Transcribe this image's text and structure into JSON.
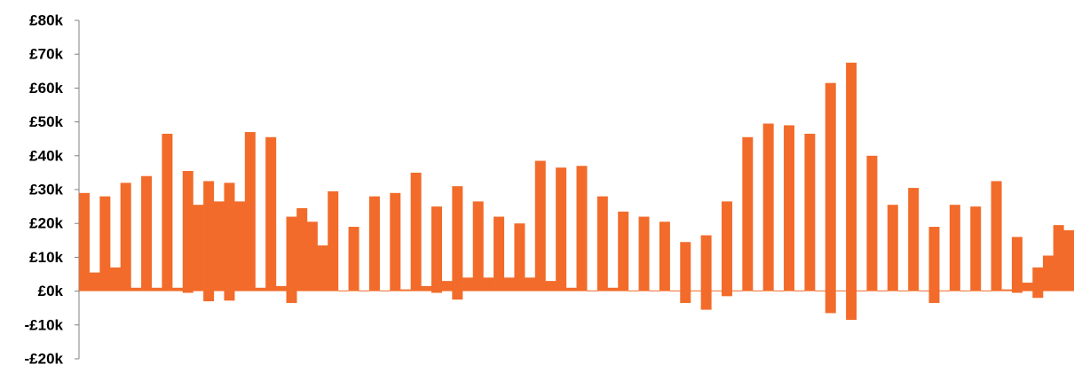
{
  "chart_data": {
    "type": "bar",
    "title": "",
    "xlabel": "",
    "ylabel": "",
    "ylim": [
      -20000,
      80000
    ],
    "y_ticks": [
      -20000,
      -10000,
      0,
      10000,
      20000,
      30000,
      40000,
      50000,
      60000,
      70000,
      80000
    ],
    "y_tick_labels": [
      "-£20k",
      "-£10k",
      "£0k",
      "£10k",
      "£20k",
      "£30k",
      "£40k",
      "£50k",
      "£60k",
      "£70k",
      "£80k"
    ],
    "grid": false,
    "legend": "none",
    "bar_color": "#F26B2A",
    "bars": [
      {
        "low": 0,
        "high": 29000
      },
      {
        "low": 0,
        "high": 5500
      },
      {
        "low": 0,
        "high": 28000
      },
      {
        "low": 0,
        "high": 7000
      },
      {
        "low": 0,
        "high": 32000
      },
      {
        "low": 0,
        "high": 1000
      },
      {
        "low": 0,
        "high": 34000
      },
      {
        "low": 0,
        "high": 1000
      },
      {
        "low": 0,
        "high": 46500
      },
      {
        "low": 0,
        "high": 1000
      },
      {
        "low": -500,
        "high": 35500
      },
      {
        "low": 0,
        "high": 25500
      },
      {
        "low": -3000,
        "high": 32500
      },
      {
        "low": 0,
        "high": 26500
      },
      {
        "low": -2800,
        "high": 32000
      },
      {
        "low": 0,
        "high": 26500
      },
      {
        "low": 0,
        "high": 47000
      },
      {
        "low": 0,
        "high": 1000
      },
      {
        "low": 0,
        "high": 45500
      },
      {
        "low": 0,
        "high": 1500
      },
      {
        "low": -3500,
        "high": 22000
      },
      {
        "low": 0,
        "high": 24500
      },
      {
        "low": 0,
        "high": 20500
      },
      {
        "low": 0,
        "high": 13500
      },
      {
        "low": 0,
        "high": 29500
      },
      {
        "low": 0,
        "high": 200
      },
      {
        "low": 0,
        "high": 19000
      },
      {
        "low": 0,
        "high": 200
      },
      {
        "low": 0,
        "high": 28000
      },
      {
        "low": 0,
        "high": 200
      },
      {
        "low": 0,
        "high": 29000
      },
      {
        "low": 0,
        "high": 500
      },
      {
        "low": 0,
        "high": 35000
      },
      {
        "low": 0,
        "high": 1500
      },
      {
        "low": -500,
        "high": 25000
      },
      {
        "low": 0,
        "high": 3000
      },
      {
        "low": -2500,
        "high": 31000
      },
      {
        "low": 0,
        "high": 4000
      },
      {
        "low": 0,
        "high": 26500
      },
      {
        "low": 0,
        "high": 4000
      },
      {
        "low": 0,
        "high": 22000
      },
      {
        "low": 0,
        "high": 4000
      },
      {
        "low": 0,
        "high": 20000
      },
      {
        "low": 0,
        "high": 4000
      },
      {
        "low": 0,
        "high": 38500
      },
      {
        "low": 0,
        "high": 3000
      },
      {
        "low": 0,
        "high": 36500
      },
      {
        "low": 0,
        "high": 1000
      },
      {
        "low": 0,
        "high": 37000
      },
      {
        "low": 0,
        "high": 200
      },
      {
        "low": 0,
        "high": 28000
      },
      {
        "low": 0,
        "high": 1000
      },
      {
        "low": 0,
        "high": 23500
      },
      {
        "low": 0,
        "high": 200
      },
      {
        "low": 0,
        "high": 22000
      },
      {
        "low": 0,
        "high": 200
      },
      {
        "low": 0,
        "high": 20500
      },
      {
        "low": 0,
        "high": 200
      },
      {
        "low": -3500,
        "high": 14500
      },
      {
        "low": 0,
        "high": 200
      },
      {
        "low": -5500,
        "high": 16500
      },
      {
        "low": 0,
        "high": 200
      },
      {
        "low": -1500,
        "high": 26500
      },
      {
        "low": 0,
        "high": 200
      },
      {
        "low": 0,
        "high": 45500
      },
      {
        "low": 0,
        "high": 200
      },
      {
        "low": 0,
        "high": 49500
      },
      {
        "low": 0,
        "high": 200
      },
      {
        "low": 0,
        "high": 49000
      },
      {
        "low": 0,
        "high": 200
      },
      {
        "low": 0,
        "high": 46500
      },
      {
        "low": 0,
        "high": 200
      },
      {
        "low": -6500,
        "high": 61500
      },
      {
        "low": 0,
        "high": 200
      },
      {
        "low": -8500,
        "high": 67500
      },
      {
        "low": 0,
        "high": 200
      },
      {
        "low": 0,
        "high": 40000
      },
      {
        "low": 0,
        "high": 200
      },
      {
        "low": 0,
        "high": 25500
      },
      {
        "low": 0,
        "high": 200
      },
      {
        "low": 0,
        "high": 30500
      },
      {
        "low": 0,
        "high": 200
      },
      {
        "low": -3500,
        "high": 19000
      },
      {
        "low": 0,
        "high": 200
      },
      {
        "low": 0,
        "high": 25500
      },
      {
        "low": 0,
        "high": 200
      },
      {
        "low": 0,
        "high": 25000
      },
      {
        "low": 0,
        "high": 200
      },
      {
        "low": 0,
        "high": 32500
      },
      {
        "low": 0,
        "high": 500
      },
      {
        "low": -500,
        "high": 16000
      },
      {
        "low": 0,
        "high": 2500
      },
      {
        "low": -2000,
        "high": 7000
      },
      {
        "low": 0,
        "high": 10500
      },
      {
        "low": 0,
        "high": 19500
      },
      {
        "low": 0,
        "high": 18000
      }
    ]
  }
}
